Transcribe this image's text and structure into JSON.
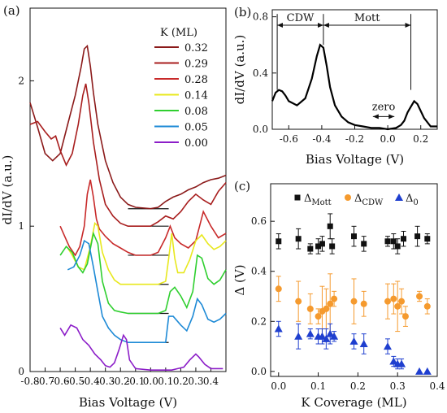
{
  "chart_data": [
    {
      "panel": "(a)",
      "type": "line",
      "xlabel": "Bias Voltage (V)",
      "ylabel": "dI/dV (a.u.)",
      "xlim": [
        -0.8,
        0.5
      ],
      "ylim": [
        0,
        2.5
      ],
      "xticks": [
        "-0.8",
        "-0.7",
        "-0.6",
        "-0.5",
        "-0.4",
        "-0.3",
        "-0.2",
        "-0.1",
        "0.0",
        "0.1",
        "0.2",
        "0.3",
        "0.4"
      ],
      "yticks": [
        "0",
        "1",
        "2"
      ],
      "legend_title": "K (ML)",
      "legend_position": "top-right",
      "series": [
        {
          "name": "0.32",
          "color": "#8b1a1a",
          "x": [
            -0.8,
            -0.75,
            -0.7,
            -0.65,
            -0.6,
            -0.55,
            -0.5,
            -0.46,
            -0.44,
            -0.42,
            -0.4,
            -0.38,
            -0.35,
            -0.3,
            -0.25,
            -0.2,
            -0.15,
            -0.1,
            0.0,
            0.05,
            0.1,
            0.15,
            0.2,
            0.25,
            0.3,
            0.35,
            0.4,
            0.45,
            0.5
          ],
          "y": [
            1.85,
            1.68,
            1.5,
            1.45,
            1.5,
            1.7,
            1.9,
            2.1,
            2.22,
            2.24,
            2.1,
            1.92,
            1.7,
            1.45,
            1.3,
            1.2,
            1.15,
            1.13,
            1.12,
            1.13,
            1.17,
            1.2,
            1.22,
            1.25,
            1.27,
            1.3,
            1.32,
            1.33,
            1.35
          ]
        },
        {
          "name": "0.29",
          "color": "#a81e1e",
          "x": [
            -0.8,
            -0.75,
            -0.7,
            -0.66,
            -0.63,
            -0.6,
            -0.56,
            -0.52,
            -0.48,
            -0.45,
            -0.43,
            -0.41,
            -0.38,
            -0.34,
            -0.3,
            -0.25,
            -0.2,
            -0.15,
            -0.1,
            0.0,
            0.05,
            0.1,
            0.15,
            0.2,
            0.25,
            0.3,
            0.35,
            0.4,
            0.45,
            0.5
          ],
          "y": [
            1.7,
            1.72,
            1.65,
            1.6,
            1.62,
            1.52,
            1.42,
            1.5,
            1.7,
            1.9,
            1.98,
            1.85,
            1.58,
            1.32,
            1.15,
            1.07,
            1.02,
            1.0,
            1.0,
            1.0,
            1.03,
            1.07,
            1.05,
            1.1,
            1.17,
            1.22,
            1.18,
            1.15,
            1.24,
            1.3
          ]
        },
        {
          "name": "0.28",
          "color": "#c82a2a",
          "x": [
            -0.6,
            -0.57,
            -0.54,
            -0.5,
            -0.47,
            -0.44,
            -0.42,
            -0.4,
            -0.38,
            -0.36,
            -0.34,
            -0.3,
            -0.25,
            -0.2,
            -0.15,
            -0.1,
            0.0,
            0.05,
            0.1,
            0.13,
            0.16,
            0.2,
            0.25,
            0.3,
            0.35,
            0.4,
            0.45,
            0.5
          ],
          "y": [
            1.0,
            0.93,
            0.86,
            0.8,
            0.86,
            1.0,
            1.22,
            1.32,
            1.2,
            1.05,
            0.98,
            0.93,
            0.88,
            0.85,
            0.82,
            0.8,
            0.8,
            0.82,
            0.92,
            1.0,
            0.92,
            0.88,
            0.85,
            0.9,
            1.1,
            1.0,
            0.92,
            0.95
          ]
        },
        {
          "name": "0.14",
          "color": "#e8e81e",
          "x": [
            -0.55,
            -0.52,
            -0.48,
            -0.44,
            -0.4,
            -0.37,
            -0.35,
            -0.32,
            -0.28,
            -0.24,
            -0.2,
            -0.15,
            -0.1,
            0.0,
            0.05,
            0.1,
            0.12,
            0.14,
            0.16,
            0.18,
            0.22,
            0.26,
            0.3,
            0.34,
            0.38,
            0.42,
            0.46,
            0.5
          ],
          "y": [
            0.85,
            0.8,
            0.72,
            0.7,
            0.86,
            1.02,
            1.0,
            0.82,
            0.7,
            0.63,
            0.6,
            0.6,
            0.6,
            0.6,
            0.6,
            0.62,
            0.78,
            0.95,
            0.78,
            0.68,
            0.68,
            0.77,
            0.9,
            0.94,
            0.88,
            0.84,
            0.86,
            0.9
          ]
        },
        {
          "name": "0.08",
          "color": "#2fcf2f",
          "x": [
            -0.6,
            -0.56,
            -0.52,
            -0.48,
            -0.45,
            -0.42,
            -0.38,
            -0.35,
            -0.32,
            -0.28,
            -0.24,
            -0.2,
            -0.15,
            -0.1,
            0.0,
            0.05,
            0.1,
            0.13,
            0.16,
            0.2,
            0.24,
            0.28,
            0.31,
            0.34,
            0.38,
            0.42,
            0.46,
            0.5
          ],
          "y": [
            0.8,
            0.86,
            0.82,
            0.72,
            0.68,
            0.74,
            0.95,
            0.88,
            0.62,
            0.47,
            0.42,
            0.41,
            0.4,
            0.4,
            0.4,
            0.4,
            0.42,
            0.55,
            0.58,
            0.52,
            0.44,
            0.55,
            0.8,
            0.78,
            0.64,
            0.6,
            0.63,
            0.7
          ]
        },
        {
          "name": "0.05",
          "color": "#1e8ad6",
          "x": [
            -0.55,
            -0.51,
            -0.47,
            -0.44,
            -0.41,
            -0.38,
            -0.35,
            -0.32,
            -0.28,
            -0.24,
            -0.2,
            -0.15,
            -0.1,
            0.0,
            0.05,
            0.1,
            0.12,
            0.15,
            0.2,
            0.24,
            0.28,
            0.31,
            0.34,
            0.38,
            0.42,
            0.46,
            0.5
          ],
          "y": [
            0.7,
            0.72,
            0.8,
            0.9,
            0.88,
            0.72,
            0.55,
            0.38,
            0.3,
            0.25,
            0.22,
            0.2,
            0.2,
            0.2,
            0.2,
            0.2,
            0.38,
            0.38,
            0.32,
            0.28,
            0.38,
            0.5,
            0.46,
            0.36,
            0.34,
            0.36,
            0.4
          ]
        },
        {
          "name": "0.00",
          "color": "#8c1ec8",
          "x": [
            -0.6,
            -0.57,
            -0.53,
            -0.49,
            -0.45,
            -0.41,
            -0.37,
            -0.33,
            -0.3,
            -0.27,
            -0.24,
            -0.21,
            -0.18,
            -0.16,
            -0.14,
            -0.1,
            0.0,
            0.1,
            0.14,
            0.18,
            0.22,
            0.26,
            0.3,
            0.32,
            0.36,
            0.4,
            0.44,
            0.48
          ],
          "y": [
            0.3,
            0.25,
            0.32,
            0.3,
            0.22,
            0.18,
            0.12,
            0.08,
            0.04,
            0.03,
            0.06,
            0.15,
            0.25,
            0.22,
            0.08,
            0.02,
            0.01,
            0.01,
            0.01,
            0.02,
            0.03,
            0.08,
            0.12,
            0.1,
            0.05,
            0.02,
            0.02,
            0.02
          ]
        }
      ],
      "reference_lines": [
        {
          "y": 1.12,
          "x": [
            -0.15,
            0.12
          ]
        },
        {
          "y": 1.0,
          "x": [
            -0.15,
            0.12
          ]
        },
        {
          "y": 0.8,
          "x": [
            -0.15,
            0.12
          ]
        },
        {
          "y": 0.6,
          "x": [
            -0.15,
            0.12
          ]
        },
        {
          "y": 0.4,
          "x": [
            -0.15,
            0.12
          ]
        },
        {
          "y": 0.2,
          "x": [
            -0.15,
            0.12
          ]
        }
      ]
    },
    {
      "panel": "(b)",
      "type": "line",
      "xlabel": "Bias Voltage (V)",
      "ylabel": "dI/dV (a.u.)",
      "xlim": [
        -0.7,
        0.3
      ],
      "ylim": [
        0,
        0.85
      ],
      "xticks": [
        "-0.6",
        "-0.4",
        "-0.2",
        "0.0",
        "0.2"
      ],
      "yticks": [
        "0.0",
        "0.4",
        "0.8"
      ],
      "series": [
        {
          "name": "",
          "color": "#000000",
          "x": [
            -0.7,
            -0.68,
            -0.66,
            -0.64,
            -0.62,
            -0.6,
            -0.55,
            -0.5,
            -0.46,
            -0.43,
            -0.41,
            -0.39,
            -0.37,
            -0.35,
            -0.32,
            -0.28,
            -0.24,
            -0.2,
            -0.15,
            -0.1,
            -0.05,
            0.0,
            0.05,
            0.08,
            0.1,
            0.12,
            0.14,
            0.16,
            0.18,
            0.22,
            0.26,
            0.3
          ],
          "y": [
            0.2,
            0.26,
            0.28,
            0.27,
            0.24,
            0.2,
            0.17,
            0.22,
            0.36,
            0.52,
            0.6,
            0.58,
            0.45,
            0.3,
            0.17,
            0.09,
            0.05,
            0.03,
            0.02,
            0.01,
            0.01,
            0.0,
            0.01,
            0.03,
            0.06,
            0.12,
            0.16,
            0.2,
            0.18,
            0.08,
            0.02,
            0.02
          ]
        }
      ],
      "annotations": [
        {
          "text": "CDW",
          "from": -0.67,
          "to": -0.39,
          "y": 0.74
        },
        {
          "text": "Mott",
          "from": -0.39,
          "to": 0.14,
          "y": 0.74
        },
        {
          "text": "zero",
          "from": -0.09,
          "to": 0.04,
          "y": 0.09
        }
      ]
    },
    {
      "panel": "(c)",
      "type": "scatter",
      "xlabel": "K Coverage (ML)",
      "ylabel": "Δ (V)",
      "xlim": [
        -0.02,
        0.4
      ],
      "ylim": [
        -0.02,
        0.75
      ],
      "xticks": [
        "0.0",
        "0.1",
        "0.2",
        "0.3",
        "0.4"
      ],
      "yticks": [
        "0.0",
        "0.2",
        "0.4",
        "0.6"
      ],
      "legend_position": "top",
      "series": [
        {
          "name": "Mott",
          "marker": "square",
          "color": "#111111",
          "x": [
            0.0,
            0.05,
            0.08,
            0.1,
            0.11,
            0.13,
            0.135,
            0.19,
            0.215,
            0.275,
            0.29,
            0.3,
            0.315,
            0.35,
            0.375
          ],
          "y": [
            0.52,
            0.53,
            0.49,
            0.5,
            0.51,
            0.58,
            0.5,
            0.54,
            0.51,
            0.52,
            0.52,
            0.5,
            0.53,
            0.54,
            0.53
          ],
          "err": [
            0.03,
            0.04,
            0.02,
            0.03,
            0.03,
            0.05,
            0.03,
            0.04,
            0.03,
            0.02,
            0.03,
            0.03,
            0.03,
            0.04,
            0.02
          ]
        },
        {
          "name": "CDW",
          "marker": "circle",
          "color": "#f59a2e",
          "x": [
            0.0,
            0.05,
            0.08,
            0.1,
            0.11,
            0.12,
            0.13,
            0.14,
            0.19,
            0.215,
            0.275,
            0.29,
            0.3,
            0.31,
            0.32,
            0.355,
            0.375
          ],
          "y": [
            0.33,
            0.28,
            0.25,
            0.22,
            0.24,
            0.25,
            0.27,
            0.29,
            0.28,
            0.27,
            0.28,
            0.29,
            0.26,
            0.28,
            0.22,
            0.3,
            0.26
          ],
          "err": [
            0.05,
            0.08,
            0.06,
            0.03,
            0.1,
            0.08,
            0.12,
            0.03,
            0.09,
            0.05,
            0.07,
            0.06,
            0.1,
            0.05,
            0.04,
            0.02,
            0.03
          ]
        },
        {
          "name": "0",
          "marker": "triangle",
          "color": "#1f3fcf",
          "x": [
            0.0,
            0.05,
            0.08,
            0.1,
            0.11,
            0.12,
            0.13,
            0.14,
            0.19,
            0.215,
            0.275,
            0.29,
            0.3,
            0.31,
            0.355,
            0.375
          ],
          "y": [
            0.17,
            0.14,
            0.15,
            0.14,
            0.14,
            0.13,
            0.15,
            0.14,
            0.12,
            0.11,
            0.1,
            0.04,
            0.03,
            0.03,
            0.0,
            0.0
          ],
          "err": [
            0.03,
            0.05,
            0.02,
            0.03,
            0.03,
            0.04,
            0.04,
            0.02,
            0.03,
            0.04,
            0.03,
            0.02,
            0.02,
            0.02,
            0.0,
            0.0
          ]
        }
      ]
    }
  ]
}
